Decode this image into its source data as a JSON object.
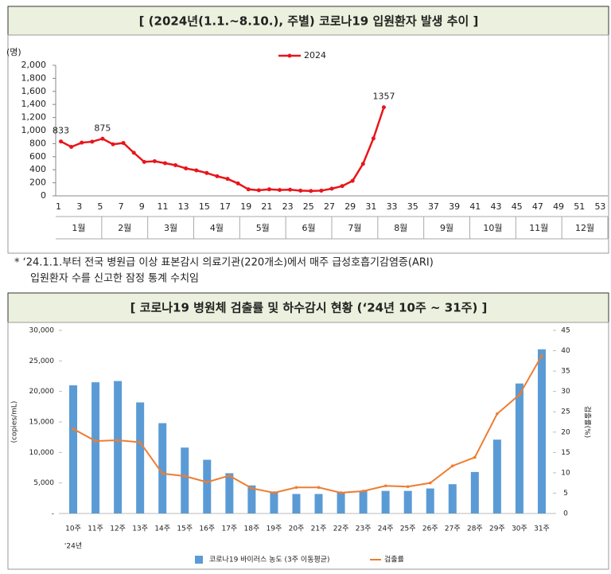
{
  "chart_data": [
    {
      "type": "line",
      "title": "[ (2024년(1.1.~8.10.), 주별) 코로나19 입원환자 발생 추이 ]",
      "y_label": "(명)",
      "categories": [
        "1",
        null,
        "3",
        null,
        "5",
        null,
        "7",
        null,
        "9",
        null,
        "11",
        null,
        "13",
        null,
        "15",
        null,
        "17",
        null,
        "19",
        null,
        "21",
        null,
        "23",
        null,
        "25",
        null,
        "27",
        null,
        "29",
        null,
        "31",
        null,
        "33",
        null,
        "35",
        null,
        "37",
        null,
        "39",
        null,
        "41",
        null,
        "43",
        null,
        "45",
        null,
        "47",
        null,
        "49",
        null,
        "51",
        null,
        "53"
      ],
      "months": [
        "1월",
        "2월",
        "3월",
        "4월",
        "5월",
        "6월",
        "7월",
        "8월",
        "9월",
        "10월",
        "11월",
        "12월"
      ],
      "series": [
        {
          "name": "2024",
          "color": "#e8151b",
          "values": [
            833,
            750,
            815,
            830,
            875,
            790,
            810,
            660,
            520,
            530,
            500,
            470,
            420,
            390,
            350,
            300,
            260,
            190,
            100,
            85,
            100,
            90,
            95,
            80,
            75,
            80,
            110,
            150,
            230,
            490,
            880,
            1357,
            null,
            null,
            null,
            null,
            null,
            null,
            null,
            null,
            null,
            null,
            null,
            null,
            null,
            null,
            null,
            null,
            null,
            null,
            null,
            null,
            null
          ],
          "value_labels": [
            "833",
            null,
            null,
            null,
            "875",
            null,
            null,
            null,
            null,
            null,
            null,
            null,
            null,
            null,
            null,
            null,
            null,
            null,
            null,
            null,
            null,
            null,
            null,
            null,
            null,
            null,
            null,
            null,
            null,
            null,
            null,
            "1357",
            null,
            null,
            null,
            null,
            null,
            null,
            null,
            null,
            null,
            null,
            null,
            null,
            null,
            null,
            null,
            null,
            null,
            null,
            null,
            null,
            null
          ]
        }
      ],
      "ylim": [
        0,
        2000
      ],
      "yticks": [
        0,
        200,
        400,
        600,
        800,
        {
          "value": 1000,
          "label": "1,000"
        },
        {
          "value": 1200,
          "label": "1,200"
        },
        {
          "value": 1400,
          "label": "1,400"
        },
        {
          "value": 1600,
          "label": "1,600"
        },
        {
          "value": 1800,
          "label": "1,800"
        },
        {
          "value": 2000,
          "label": "2,000"
        }
      ],
      "legend": "top",
      "note": [
        "*  ‘24.1.1.부터 전국 병원급 이상 표본감시 의료기관(220개소)에서 매주 급성호흡기감염증(ARI)",
        "입원환자 수를 신고한 잠정 통계 수치임"
      ]
    },
    {
      "type": "bar",
      "title": "[ 코로나19 병원체 검출률 및 하수감시 현황 (‘24년 10주 ~ 31주) ]",
      "y_label": "(copies/mL)",
      "y2_label": "검출률(%)",
      "x_note": "'24년",
      "categories": [
        "10주",
        "11주",
        "12주",
        "13주",
        "14주",
        "15주",
        "16주",
        "17주",
        "18주",
        "19주",
        "20주",
        "21주",
        "22주",
        "23주",
        "24주",
        "25주",
        "26주",
        "27주",
        "28주",
        "29주",
        "30주",
        "31주"
      ],
      "series": [
        {
          "name": "코로나19 바이러스 농도 (3주 이동평균)",
          "color": "#5b9bd5",
          "type": "bar",
          "values": [
            21000,
            21500,
            21700,
            18200,
            14800,
            10800,
            8800,
            6600,
            4600,
            3600,
            3200,
            3200,
            3500,
            3700,
            3700,
            3700,
            4100,
            4800,
            6800,
            12100,
            21300,
            26900
          ]
        },
        {
          "name": "검출률",
          "color": "#ed7d31",
          "type": "line",
          "axis": "y2",
          "values": [
            20.8,
            17.8,
            18,
            17.5,
            9.8,
            9.2,
            7.7,
            9.3,
            6.2,
            5.1,
            6.4,
            6.4,
            5.1,
            5.5,
            6.8,
            6.6,
            7.5,
            11.7,
            13.8,
            24.5,
            29.2,
            38.8
          ]
        }
      ],
      "ylim": [
        0,
        30000
      ],
      "yticks": [
        {
          "value": 0,
          "label": "-"
        },
        {
          "value": 5000,
          "label": "5,000"
        },
        {
          "value": 10000,
          "label": "10,000"
        },
        {
          "value": 15000,
          "label": "15,000"
        },
        {
          "value": 20000,
          "label": "20,000"
        },
        {
          "value": 25000,
          "label": "25,000"
        },
        {
          "value": 30000,
          "label": "30,000"
        }
      ],
      "y2lim": [
        0,
        45
      ],
      "y2ticks": [
        0,
        5,
        10,
        15,
        20,
        25,
        30,
        35,
        40,
        45
      ],
      "legend": "bottom"
    }
  ]
}
